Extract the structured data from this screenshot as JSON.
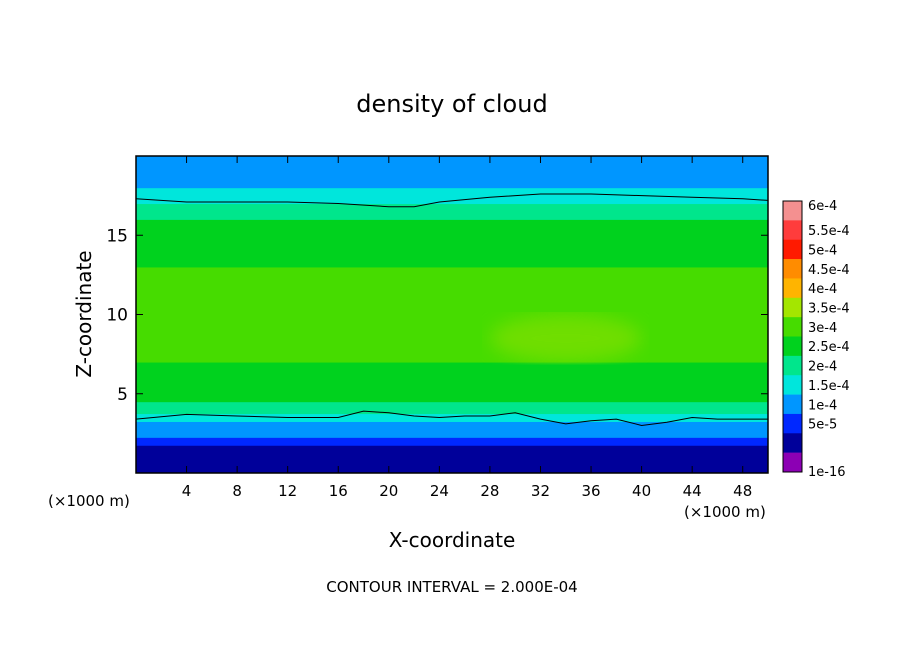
{
  "chart_data": {
    "type": "heatmap",
    "title": "density of cloud",
    "xlabel": "X-coordinate",
    "ylabel": "Z-coordinate",
    "x_unit_left": "(×1000 m)",
    "x_unit_right": "(×1000 m)",
    "xlim": [
      0,
      50
    ],
    "ylim": [
      0,
      20
    ],
    "x_ticks": [
      4,
      8,
      12,
      16,
      20,
      24,
      28,
      32,
      36,
      40,
      44,
      48
    ],
    "y_ticks": [
      5,
      10,
      15
    ],
    "footer": "CONTOUR INTERVAL = 2.000E-04",
    "colorbar": {
      "labels": [
        "6e-4",
        "5.5e-4",
        "5e-4",
        "4.5e-4",
        "4e-4",
        "3.5e-4",
        "3e-4",
        "2.5e-4",
        "2e-4",
        "1.5e-4",
        "1e-4",
        "5e-5",
        "1e-16"
      ],
      "values": [
        0.0006,
        0.00055,
        0.0005,
        0.00045,
        0.0004,
        0.00035,
        0.0003,
        0.00025,
        0.0002,
        0.00015,
        0.0001,
        5e-05,
        1e-16
      ],
      "colors": [
        "#f49090",
        "#ff3c3c",
        "#ff1a00",
        "#ff8c00",
        "#ffb400",
        "#a4e600",
        "#46dc00",
        "#00d21e",
        "#00e68c",
        "#00e6dc",
        "#0096ff",
        "#0028ff",
        "#00009a",
        "#8c00b4"
      ]
    },
    "field_profile": {
      "z": [
        0.5,
        1.0,
        1.5,
        2.0,
        2.5,
        3.0,
        3.5,
        4.0,
        5.0,
        6.0,
        8.0,
        10.0,
        12.0,
        14.0,
        15.5,
        16.5,
        17.5,
        18.5,
        19.5
      ],
      "density": [
        1e-16,
        1.2e-05,
        4e-05,
        7e-05,
        0.0001,
        0.00014,
        0.00018,
        0.00022,
        0.00026,
        0.00029,
        0.00032,
        0.00033,
        0.00031,
        0.00029,
        0.00026,
        0.00023,
        0.00017,
        0.00013,
        0.0001
      ]
    },
    "contour_2e-4": {
      "lower": {
        "x": [
          0,
          4,
          8,
          12,
          16,
          18,
          20,
          22,
          24,
          26,
          28,
          30,
          32,
          34,
          36,
          38,
          40,
          42,
          44,
          46,
          48,
          50
        ],
        "z": [
          3.4,
          3.7,
          3.6,
          3.5,
          3.5,
          3.9,
          3.8,
          3.6,
          3.5,
          3.6,
          3.6,
          3.8,
          3.4,
          3.1,
          3.3,
          3.4,
          3.0,
          3.2,
          3.5,
          3.4,
          3.4,
          3.4
        ]
      },
      "upper": {
        "x": [
          0,
          4,
          8,
          12,
          16,
          20,
          22,
          24,
          28,
          32,
          36,
          40,
          44,
          48,
          50
        ],
        "z": [
          17.3,
          17.1,
          17.1,
          17.1,
          17.0,
          16.8,
          16.8,
          17.1,
          17.4,
          17.6,
          17.6,
          17.5,
          17.4,
          17.3,
          17.2
        ]
      }
    },
    "maximum_region": {
      "x": [
        28,
        40
      ],
      "z": [
        7,
        10
      ],
      "value": 0.00035
    }
  }
}
